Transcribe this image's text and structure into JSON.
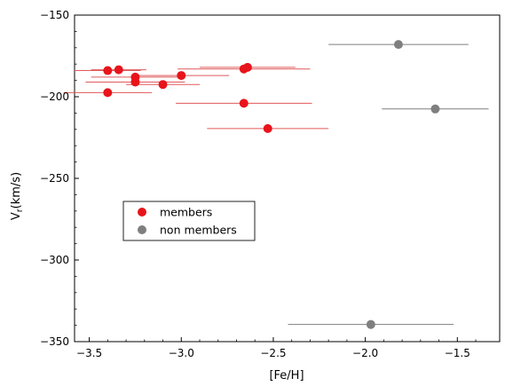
{
  "chart_data": {
    "type": "scatter",
    "title": "",
    "xlabel": "[Fe/H]",
    "ylabel": "V",
    "ylabel_sub": "r",
    "ylabel_unit": "(km/s)",
    "xlim": [
      -3.58,
      -1.27
    ],
    "ylim": [
      -350,
      -150
    ],
    "xticks": [
      -3.5,
      -3.0,
      -2.5,
      -2.0,
      -1.5
    ],
    "xtick_labels": [
      "−3.5",
      "−3.0",
      "−2.5",
      "−2.0",
      "−1.5"
    ],
    "yticks": [
      -350,
      -300,
      -250,
      -200,
      -150
    ],
    "ytick_labels": [
      "−350",
      "−300",
      "−250",
      "−200",
      "−150"
    ],
    "grid": false,
    "legend_position": "center-left",
    "series": [
      {
        "name": "members",
        "color": "#e8141b",
        "errbar_color": "#e05a5a",
        "points": [
          {
            "x": -3.4,
            "y": -184,
            "xerr": 0.18
          },
          {
            "x": -3.34,
            "y": -183.5,
            "xerr": 0.15
          },
          {
            "x": -3.25,
            "y": -188,
            "xerr": 0.24
          },
          {
            "x": -3.25,
            "y": -191,
            "xerr": 0.27
          },
          {
            "x": -3.1,
            "y": -192.5,
            "xerr": 0.2
          },
          {
            "x": -3.0,
            "y": -187,
            "xerr": 0.26
          },
          {
            "x": -2.66,
            "y": -183,
            "xerr": 0.36
          },
          {
            "x": -2.64,
            "y": -182,
            "xerr": 0.26
          },
          {
            "x": -3.4,
            "y": -197.5,
            "xerr": 0.24
          },
          {
            "x": -2.66,
            "y": -204,
            "xerr": 0.37
          },
          {
            "x": -2.53,
            "y": -219.5,
            "xerr": 0.33
          }
        ]
      },
      {
        "name": "non members",
        "color": "#7f7f7f",
        "errbar_color": "#7f7f7f",
        "points": [
          {
            "x": -1.82,
            "y": -168,
            "xerr": 0.38
          },
          {
            "x": -1.62,
            "y": -207.5,
            "xerr": 0.29
          },
          {
            "x": -1.97,
            "y": -339.5,
            "xerr": 0.45
          }
        ]
      }
    ]
  }
}
